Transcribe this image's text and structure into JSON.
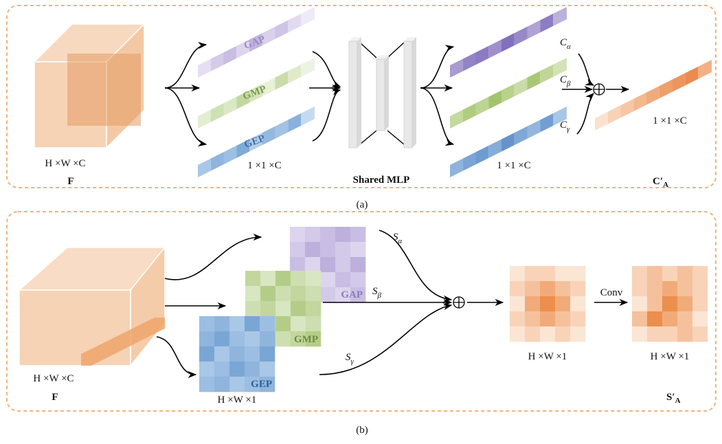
{
  "panel_a": {
    "input_size": "H ×W ×C",
    "input_name": "F",
    "pool_labels": [
      "GAP",
      "GMP",
      "GEP"
    ],
    "pool_size": "1 ×1 ×C",
    "mlp_label": "Shared MLP",
    "mlp_out_size": "1 ×1 ×C",
    "weights": [
      {
        "main": "C",
        "sub": "α"
      },
      {
        "main": "C",
        "sub": "β"
      },
      {
        "main": "C",
        "sub": "γ"
      }
    ],
    "output_size": "1 ×1 ×C",
    "output_name": {
      "main": "C′",
      "sub": "A"
    },
    "caption": "(a)"
  },
  "panel_b": {
    "input_size": "H ×W ×C",
    "input_name": "F",
    "pool_labels": [
      "GAP",
      "GMP",
      "GEP"
    ],
    "pool_size": "H ×W ×1",
    "weights": [
      {
        "main": "S",
        "sub": "α"
      },
      {
        "main": "S",
        "sub": "β"
      },
      {
        "main": "S",
        "sub": "γ"
      }
    ],
    "sum_size": "H ×W ×1",
    "conv_label": "Conv",
    "output_size": "H ×W ×1",
    "output_name": {
      "main": "S′",
      "sub": "A"
    },
    "caption": "(b)"
  }
}
